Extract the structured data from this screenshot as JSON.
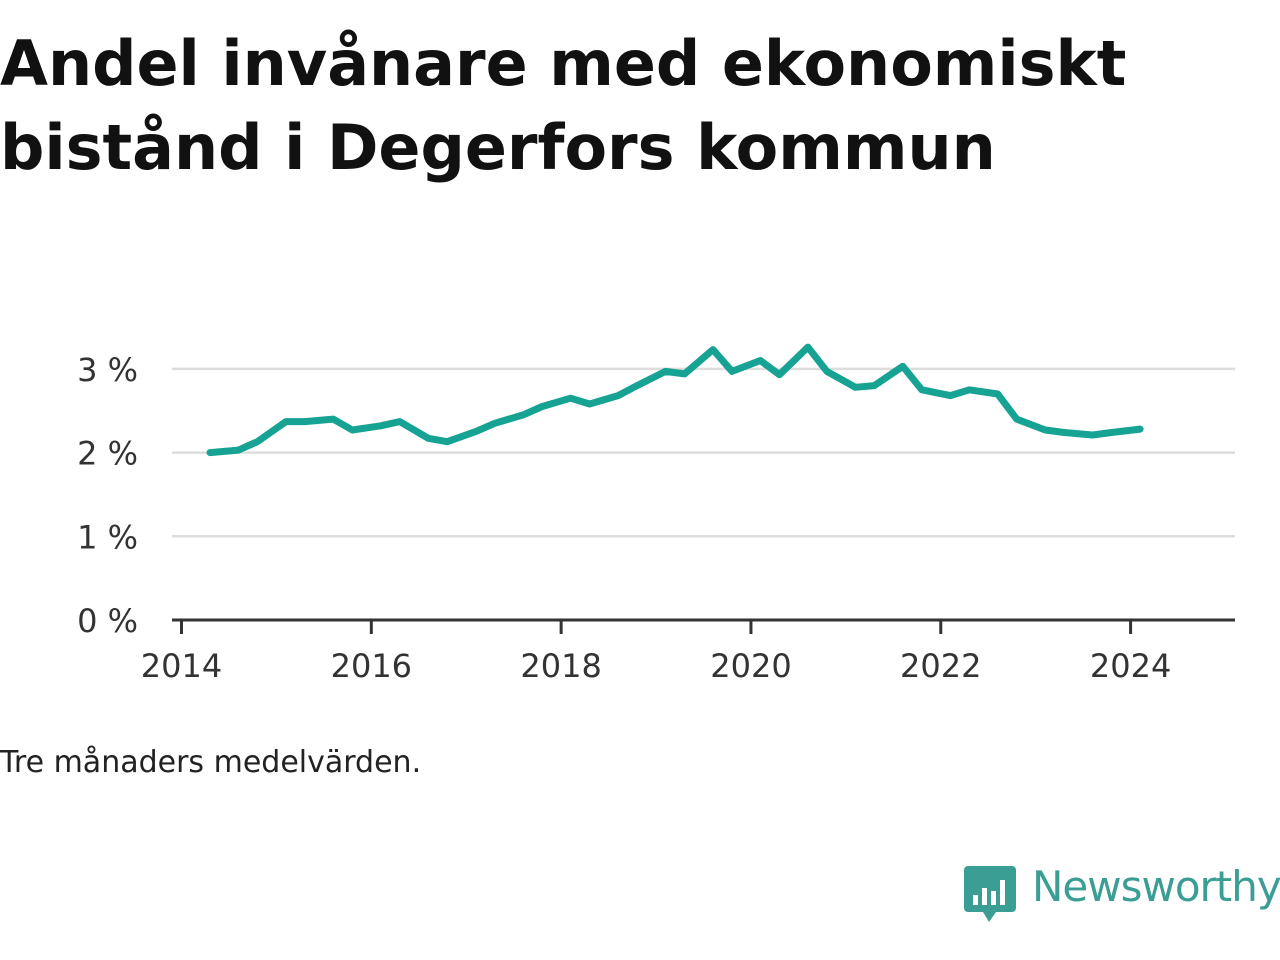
{
  "title": "Andel invånare med ekonomiskt bistånd i Degerfors kommun",
  "note": "Tre månaders medelvärden.",
  "logo": {
    "text": "Newsworthy",
    "icon": "newsworthy-logo-icon",
    "color": "#3a9e94"
  },
  "chart_data": {
    "type": "line",
    "title": "Andel invånare med ekonomiskt bistånd i Degerfors kommun",
    "xlabel": "",
    "ylabel": "",
    "xlim": [
      2013.9,
      2025.1
    ],
    "ylim": [
      0,
      3.5
    ],
    "grid": true,
    "x_ticks": [
      {
        "value": 2014,
        "label": "2014"
      },
      {
        "value": 2016,
        "label": "2016"
      },
      {
        "value": 2018,
        "label": "2018"
      },
      {
        "value": 2020,
        "label": "2020"
      },
      {
        "value": 2022,
        "label": "2022"
      },
      {
        "value": 2024,
        "label": "2024"
      }
    ],
    "y_ticks": [
      {
        "value": 0,
        "label": "0 %"
      },
      {
        "value": 1,
        "label": "1 %"
      },
      {
        "value": 2,
        "label": "2 %"
      },
      {
        "value": 3,
        "label": "3 %"
      }
    ],
    "color": "#16a394",
    "series": [
      {
        "x": [
          2014.3,
          2014.6,
          2014.8,
          2015.1,
          2015.3,
          2015.6,
          2015.8,
          2016.1,
          2016.3,
          2016.6,
          2016.8,
          2017.1,
          2017.3,
          2017.6,
          2017.8,
          2018.1,
          2018.3,
          2018.6,
          2018.8,
          2019.1,
          2019.3,
          2019.6,
          2019.8,
          2020.1,
          2020.3,
          2020.6,
          2020.8,
          2021.1,
          2021.3,
          2021.6,
          2021.8,
          2022.1,
          2022.3,
          2022.6,
          2022.8,
          2023.1,
          2023.3,
          2023.6,
          2023.8,
          2024.1
        ],
        "values": [
          2.0,
          2.03,
          2.13,
          2.37,
          2.37,
          2.4,
          2.27,
          2.32,
          2.37,
          2.17,
          2.13,
          2.25,
          2.35,
          2.45,
          2.55,
          2.65,
          2.58,
          2.68,
          2.8,
          2.97,
          2.94,
          3.23,
          2.97,
          3.1,
          2.93,
          3.26,
          2.97,
          2.78,
          2.8,
          3.03,
          2.75,
          2.68,
          2.75,
          2.7,
          2.4,
          2.27,
          2.24,
          2.21,
          2.24,
          2.28
        ]
      }
    ]
  }
}
